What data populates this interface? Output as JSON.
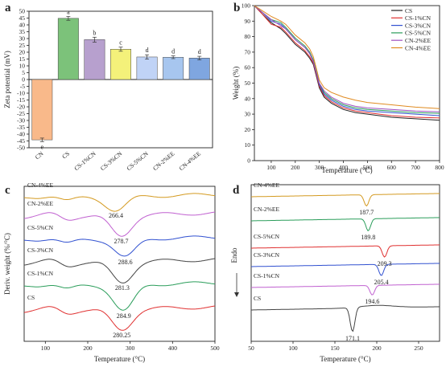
{
  "chart_data": [
    {
      "panel": "a",
      "type": "bar",
      "ylabel": "Zeta potential (mV)",
      "ylim": [
        -50,
        50
      ],
      "yticks": [
        -50,
        -45,
        -40,
        -35,
        -30,
        -25,
        -20,
        -15,
        -10,
        -5,
        0,
        5,
        10,
        15,
        20,
        25,
        30,
        35,
        40,
        45,
        50
      ],
      "categories": [
        "CN",
        "CS",
        "CS-1%CN",
        "CS-3%CN",
        "CS-5%CN",
        "CN-2%EE",
        "CN-4%EE"
      ],
      "values": [
        -44.2,
        44.8,
        29.2,
        22.2,
        16.5,
        16.3,
        15.7
      ],
      "errors": [
        1.3,
        1.4,
        1.8,
        1.5,
        1.6,
        1.0,
        1.3
      ],
      "letters": [
        "e",
        "a",
        "b",
        "c",
        "d",
        "d",
        "d"
      ],
      "colors": [
        "#f9b98a",
        "#7cc27a",
        "#b7a0ce",
        "#f4f17a",
        "#c0d3f6",
        "#a7c6ef",
        "#7fa6e0"
      ]
    },
    {
      "panel": "b",
      "type": "line",
      "xlabel": "Temperature (°C)",
      "ylabel": "Weight (%)",
      "xlim": [
        30,
        800
      ],
      "ylim": [
        0,
        100
      ],
      "xticks": [
        100,
        200,
        300,
        400,
        500,
        600,
        700,
        800
      ],
      "yticks": [
        0,
        10,
        20,
        30,
        40,
        50,
        60,
        70,
        80,
        90,
        100
      ],
      "legend_position": "top-right",
      "x": [
        30,
        60,
        100,
        140,
        160,
        200,
        240,
        260,
        275,
        290,
        300,
        320,
        350,
        400,
        450,
        500,
        600,
        700,
        800
      ],
      "series": [
        {
          "name": "CS",
          "color": "#222222",
          "values": [
            100,
            95,
            89,
            85,
            82,
            75,
            70,
            66,
            62,
            53,
            47,
            41,
            37,
            33,
            31,
            30,
            28,
            27,
            26
          ]
        },
        {
          "name": "CS-1%CN",
          "color": "#e03030",
          "values": [
            100,
            95,
            88,
            86,
            83,
            76,
            71,
            67,
            63,
            54,
            48,
            42,
            38,
            34,
            32,
            31,
            29,
            28,
            27.5
          ]
        },
        {
          "name": "CS-3%CN",
          "color": "#3050d0",
          "values": [
            100,
            96,
            90,
            88,
            85,
            78,
            73,
            69,
            64,
            55,
            49,
            43,
            39,
            35,
            33,
            32,
            31,
            30,
            29
          ]
        },
        {
          "name": "CS-5%CN",
          "color": "#2a9d5a",
          "values": [
            100,
            96,
            91,
            89,
            86,
            79,
            74,
            70,
            65,
            56,
            50,
            44,
            40,
            36,
            34,
            33,
            32,
            31,
            30.5
          ]
        },
        {
          "name": "CN-2%EE",
          "color": "#a050c0",
          "values": [
            100,
            96,
            91,
            87,
            85,
            78,
            73,
            69,
            64,
            55,
            50,
            45,
            41,
            37,
            35,
            34,
            33,
            32,
            31.5
          ]
        },
        {
          "name": "CN-4%EE",
          "color": "#e08a20",
          "values": [
            100,
            97,
            93,
            90,
            88,
            81,
            76,
            72,
            67,
            58,
            52,
            47,
            44,
            41,
            39,
            37.5,
            36,
            34.5,
            33.5
          ]
        }
      ]
    },
    {
      "panel": "c",
      "type": "line",
      "xlabel": "Temperature (°C)",
      "ylabel": "Deriv. weight (%/°C)",
      "xlim": [
        50,
        500
      ],
      "xticks": [
        100,
        200,
        300,
        400,
        500
      ],
      "series": [
        {
          "name": "CS",
          "color": "#e03030",
          "peak": 280.25,
          "peak_label": "280.25"
        },
        {
          "name": "CS-1%CN",
          "color": "#2a9d5a",
          "peak": 284.9,
          "peak_label": "284.9"
        },
        {
          "name": "CS-3%CN",
          "color": "#444444",
          "peak": 281.3,
          "peak_label": "281.3"
        },
        {
          "name": "CS-5%CN",
          "color": "#3050d0",
          "peak": 288.6,
          "peak_label": "288.6"
        },
        {
          "name": "CN-2%EE",
          "color": "#c060d0",
          "peak": 278.7,
          "peak_label": "278.7"
        },
        {
          "name": "CN-4%EE",
          "color": "#d49a20",
          "peak": 266.4,
          "peak_label": "266.4"
        }
      ]
    },
    {
      "panel": "d",
      "type": "line",
      "xlabel": "Temperature (°C)",
      "ylabel": "Endo",
      "xlim": [
        50,
        275
      ],
      "xticks": [
        50,
        100,
        150,
        200,
        250
      ],
      "series": [
        {
          "name": "CS",
          "color": "#444444",
          "peak": 171.1,
          "peak_label": "171.1"
        },
        {
          "name": "CS-1%CN",
          "color": "#c060d0",
          "peak": 194.6,
          "peak_label": "194.6"
        },
        {
          "name": "CS-3%CN",
          "color": "#3050d0",
          "peak": 205.4,
          "peak_label": "205.4"
        },
        {
          "name": "CS-5%CN",
          "color": "#e03030",
          "peak": 209.3,
          "peak_label": "209.3"
        },
        {
          "name": "CN-2%EE",
          "color": "#2a9d5a",
          "peak": 189.8,
          "peak_label": "189.8"
        },
        {
          "name": "CN-4%EE",
          "color": "#d49a20",
          "peak": 187.7,
          "peak_label": "187.7"
        }
      ]
    }
  ],
  "panel_labels": {
    "a": "a",
    "b": "b",
    "c": "c",
    "d": "d"
  }
}
